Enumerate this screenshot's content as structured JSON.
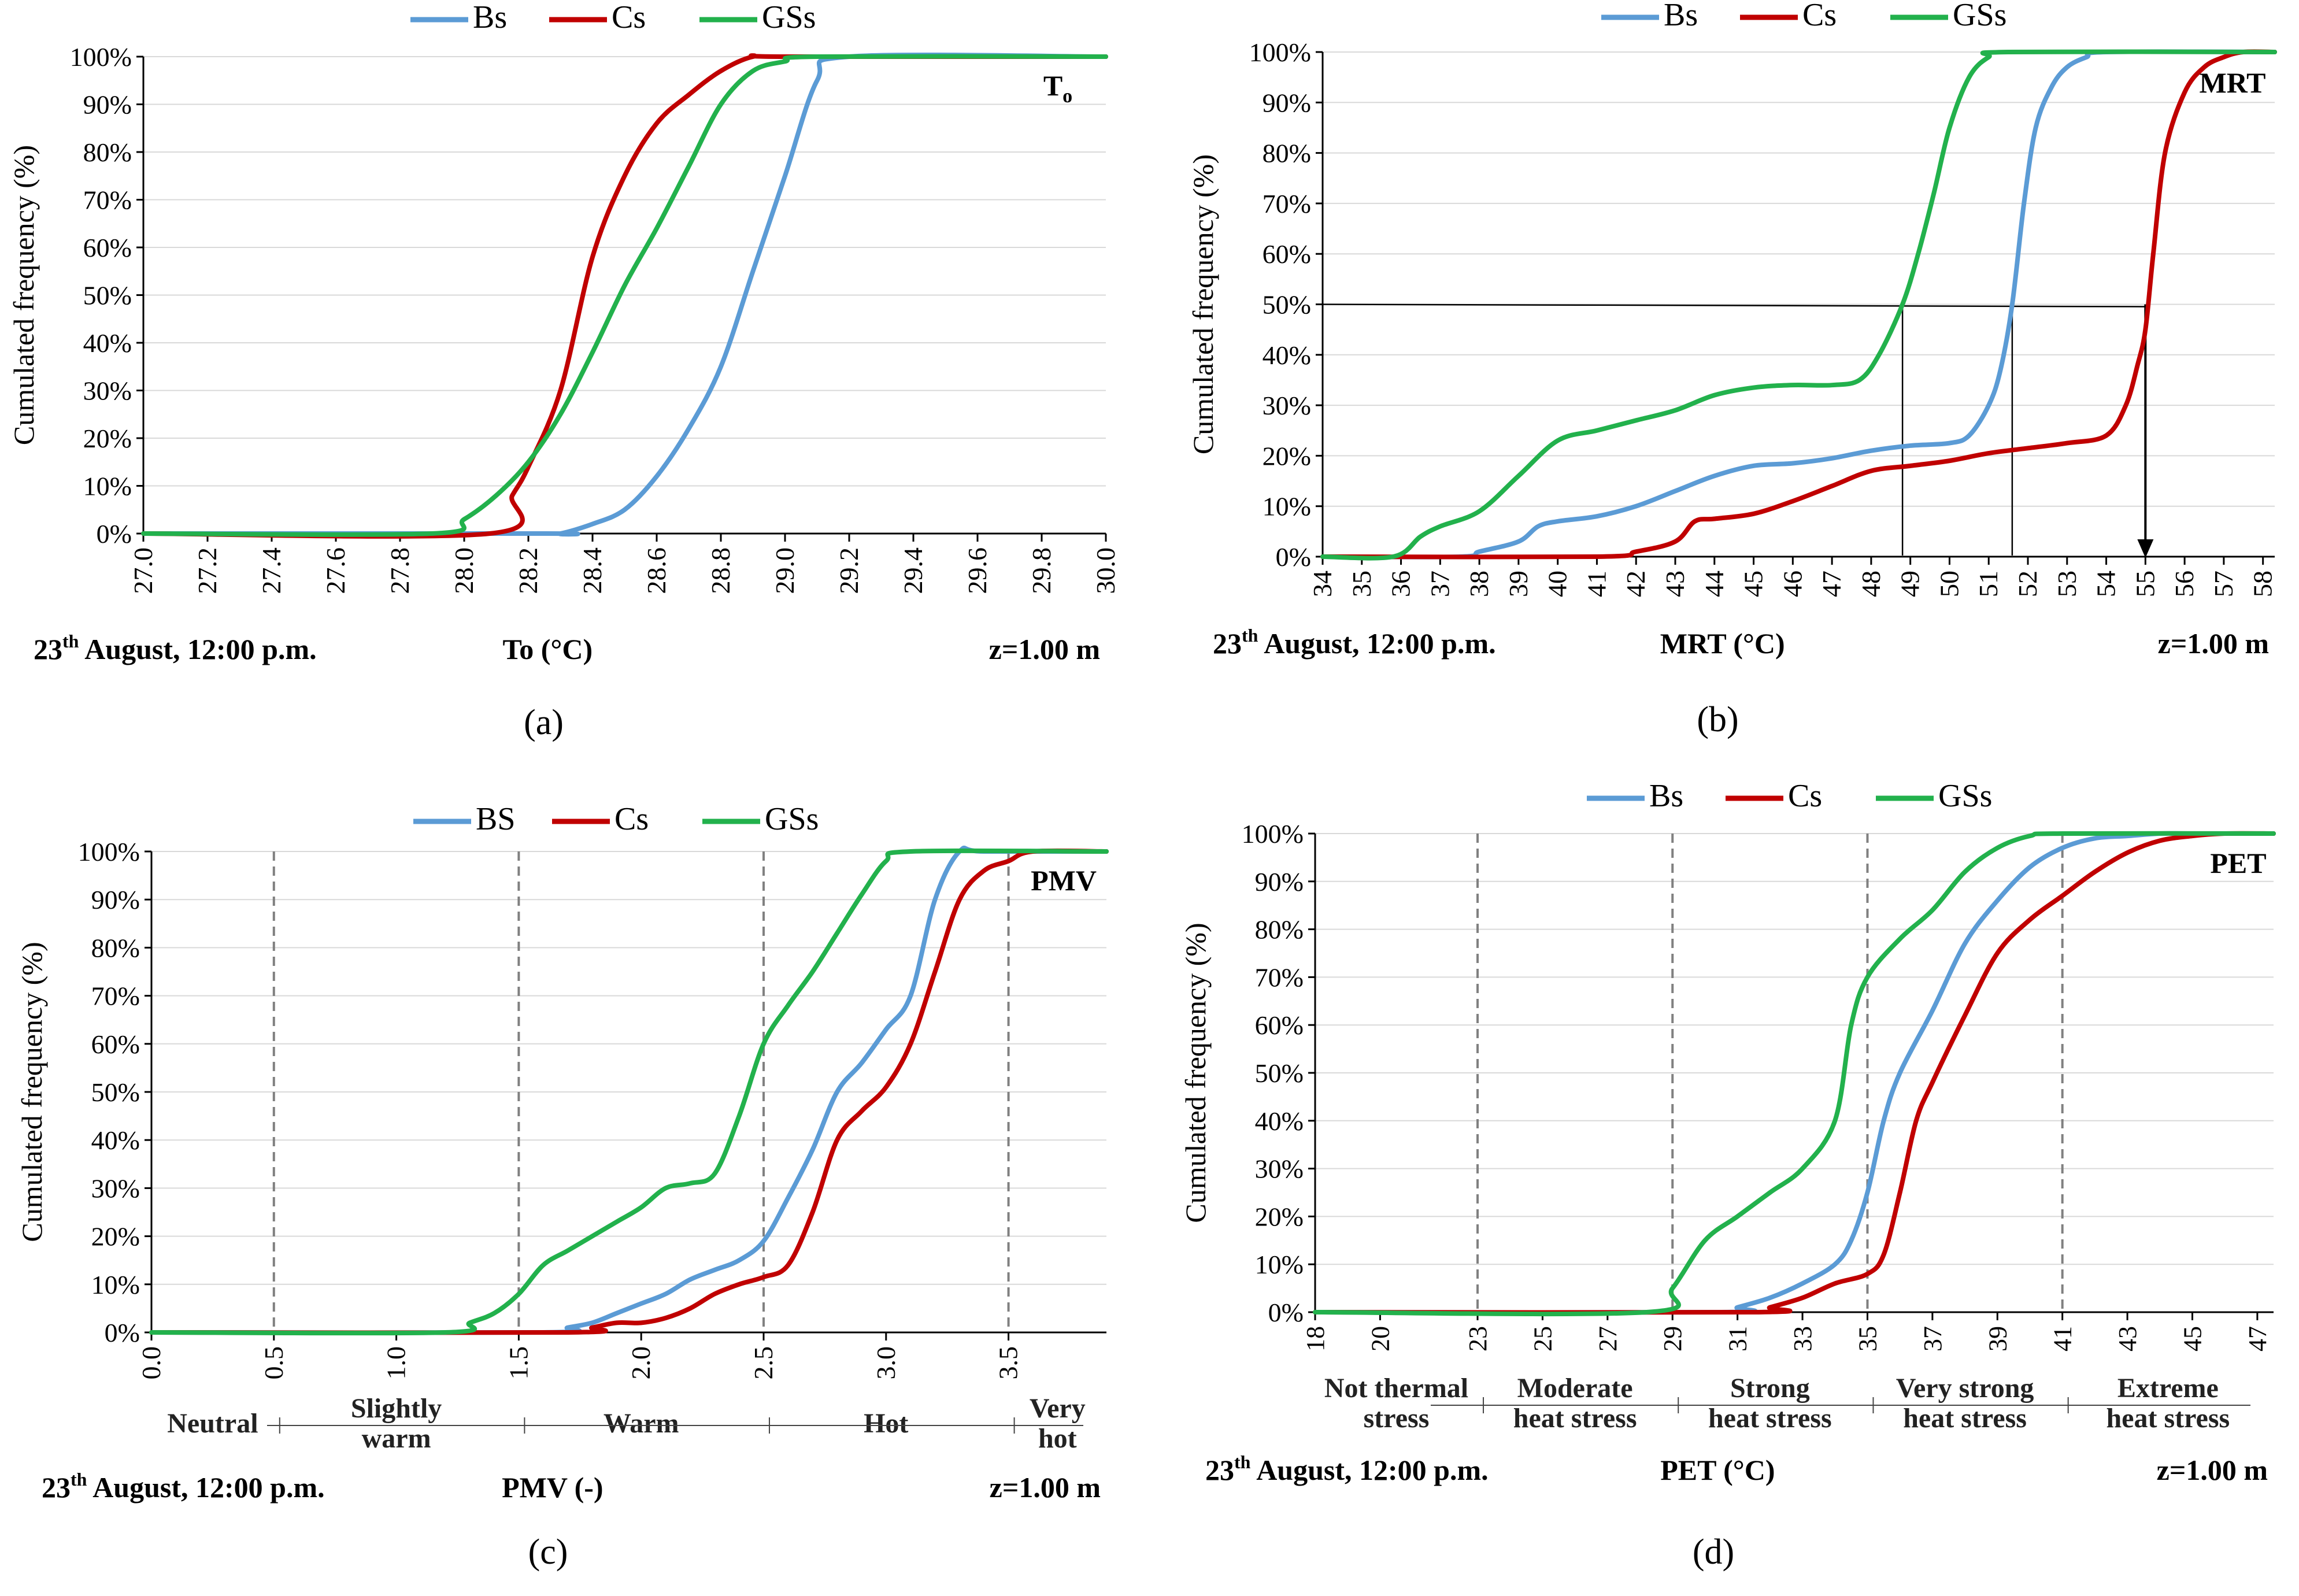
{
  "figure": {
    "colors": {
      "Bs": "#5b9bd5",
      "Cs": "#c00000",
      "GSs": "#22b14c",
      "axis": "#000000",
      "grid": "#d9d9d9",
      "ref": "#808080"
    }
  },
  "chart_data": [
    {
      "type": "line",
      "panel_label": "(a)",
      "title": "To",
      "title_sub": "o",
      "xlabel": "To (°C)",
      "ylabel": "Cumulated frequency (%)",
      "date_label": "23",
      "date_sup": "th",
      "date_rest": " August, 12:00 p.m.",
      "height_label": "z=1.00 m",
      "xlim": [
        27.0,
        30.0
      ],
      "ylim": [
        0,
        100
      ],
      "x_ticks": [
        27.0,
        27.2,
        27.4,
        27.6,
        27.8,
        28.0,
        28.2,
        28.4,
        28.6,
        28.8,
        29.0,
        29.2,
        29.4,
        29.6,
        29.8,
        30.0
      ],
      "x_tick_labels": [
        "27.0",
        "27.2",
        "27.4",
        "27.6",
        "27.8",
        "28.0",
        "28.2",
        "28.4",
        "28.6",
        "28.8",
        "29.0",
        "29.2",
        "29.4",
        "29.6",
        "29.8",
        "30.0"
      ],
      "y_tick_labels": [
        "0%",
        "10%",
        "20%",
        "30%",
        "40%",
        "50%",
        "60%",
        "70%",
        "80%",
        "90%",
        "100%"
      ],
      "legend": [
        "Bs",
        "Cs",
        "GSs"
      ],
      "series": [
        {
          "name": "Bs",
          "x": [
            27.0,
            28.25,
            28.3,
            28.4,
            28.5,
            28.6,
            28.7,
            28.8,
            28.9,
            29.0,
            29.1,
            29.2,
            30.0
          ],
          "y": [
            0,
            0,
            0,
            2,
            5,
            12,
            22,
            35,
            55,
            75,
            95,
            100,
            100
          ]
        },
        {
          "name": "Cs",
          "x": [
            27.0,
            28.08,
            28.15,
            28.2,
            28.3,
            28.4,
            28.5,
            28.6,
            28.7,
            28.8,
            28.9,
            29.0,
            30.0
          ],
          "y": [
            0,
            0,
            8,
            14,
            30,
            58,
            75,
            86,
            92,
            97,
            100,
            100,
            100
          ]
        },
        {
          "name": "GSs",
          "x": [
            27.0,
            27.9,
            28.0,
            28.1,
            28.2,
            28.3,
            28.4,
            28.5,
            28.6,
            28.7,
            28.8,
            28.9,
            29.0,
            29.1,
            30.0
          ],
          "y": [
            0,
            0,
            3,
            8,
            15,
            25,
            38,
            52,
            64,
            77,
            90,
            97,
            99,
            100,
            100
          ]
        }
      ]
    },
    {
      "type": "line",
      "panel_label": "(b)",
      "title": "MRT",
      "xlabel": "MRT (°C)",
      "ylabel": "Cumulated frequency (%)",
      "date_label": "23",
      "date_sup": "th",
      "date_rest": " August, 12:00 p.m.",
      "height_label": "z=1.00 m",
      "xlim": [
        34,
        58.3
      ],
      "ylim": [
        0,
        100
      ],
      "x_ticks": [
        34,
        35,
        36,
        37,
        38,
        39,
        40,
        41,
        42,
        43,
        44,
        45,
        46,
        47,
        48,
        49,
        50,
        51,
        52,
        53,
        54,
        55,
        56,
        57,
        58
      ],
      "x_tick_labels": [
        "34",
        "35",
        "36",
        "37",
        "38",
        "39",
        "40",
        "41",
        "42",
        "43",
        "44",
        "45",
        "46",
        "47",
        "48",
        "49",
        "50",
        "51",
        "52",
        "53",
        "54",
        "55",
        "56",
        "57",
        "58"
      ],
      "y_tick_labels": [
        "0%",
        "10%",
        "20%",
        "30%",
        "40%",
        "50%",
        "60%",
        "70%",
        "80%",
        "90%",
        "100%"
      ],
      "legend": [
        "Bs",
        "Cs",
        "GSs"
      ],
      "median_lines": [
        48.8,
        51.6,
        55.0
      ],
      "series": [
        {
          "name": "Bs",
          "x": [
            34,
            37.5,
            38,
            39,
            39.5,
            40,
            41,
            42,
            43,
            44,
            45,
            46,
            47,
            48,
            49,
            50,
            50.5,
            51,
            51.3,
            51.6,
            51.9,
            52.2,
            52.6,
            53,
            53.5,
            54,
            58.3
          ],
          "y": [
            0,
            0,
            1,
            3,
            6,
            7,
            8,
            10,
            13,
            16,
            18,
            18.5,
            19.5,
            21,
            22,
            22.5,
            24,
            30,
            37,
            50,
            70,
            85,
            93,
            97,
            99,
            100,
            100
          ]
        },
        {
          "name": "Cs",
          "x": [
            34,
            41,
            42,
            43,
            43.5,
            44,
            45,
            46,
            47,
            48,
            49,
            50,
            51,
            52,
            53,
            54,
            54.5,
            54.8,
            55,
            55.2,
            55.5,
            56,
            56.5,
            57,
            57.5,
            58.3
          ],
          "y": [
            0,
            0,
            1,
            3,
            7,
            7.5,
            8.5,
            11,
            14,
            17,
            18,
            19,
            20.5,
            21.5,
            22.5,
            24,
            30,
            38,
            45,
            60,
            80,
            92,
            97,
            99,
            100,
            100
          ]
        },
        {
          "name": "GSs",
          "x": [
            34,
            35.8,
            36.5,
            37,
            38,
            39,
            40,
            41,
            42,
            43,
            44,
            45,
            46,
            47,
            47.7,
            48.2,
            48.8,
            49.2,
            49.6,
            50,
            50.5,
            51,
            51.5,
            58.3
          ],
          "y": [
            0,
            0,
            4,
            6,
            9,
            16,
            23,
            25,
            27,
            29,
            32,
            33.5,
            34,
            34,
            35,
            40,
            50,
            60,
            72,
            85,
            95,
            99,
            100,
            100
          ]
        }
      ]
    },
    {
      "type": "line",
      "panel_label": "(c)",
      "title": "PMV",
      "xlabel": "PMV (-)",
      "ylabel": "Cumulated frequency (%)",
      "date_label": "23",
      "date_sup": "th",
      "date_rest": " August, 12:00 p.m.",
      "height_label": "z=1.00 m",
      "xlim": [
        0.0,
        3.9
      ],
      "ylim": [
        0,
        100
      ],
      "x_ticks": [
        0.0,
        0.5,
        1.0,
        1.5,
        2.0,
        2.5,
        3.0,
        3.5
      ],
      "x_tick_labels": [
        "0.0",
        "0.5",
        "1.0",
        "1.5",
        "2.0",
        "2.5",
        "3.0",
        "3.5"
      ],
      "y_tick_labels": [
        "0%",
        "10%",
        "20%",
        "30%",
        "40%",
        "50%",
        "60%",
        "70%",
        "80%",
        "90%",
        "100%"
      ],
      "legend": [
        "BS",
        "Cs",
        "GSs"
      ],
      "ref_lines": [
        0.5,
        1.5,
        2.5,
        3.5
      ],
      "zones": [
        {
          "lines": [
            "Neutral"
          ],
          "from": 0.0,
          "to": 0.5
        },
        {
          "lines": [
            "Slightly",
            "warm"
          ],
          "from": 0.5,
          "to": 1.5
        },
        {
          "lines": [
            "Warm"
          ],
          "from": 1.5,
          "to": 2.5
        },
        {
          "lines": [
            "Hot"
          ],
          "from": 2.5,
          "to": 3.5
        },
        {
          "lines": [
            "Very",
            "hot"
          ],
          "from": 3.5,
          "to": 3.9
        }
      ],
      "series": [
        {
          "name": "BS",
          "x": [
            0.0,
            1.6,
            1.7,
            1.8,
            1.9,
            2.0,
            2.1,
            2.2,
            2.3,
            2.4,
            2.5,
            2.6,
            2.7,
            2.8,
            2.9,
            3.0,
            3.1,
            3.2,
            3.3,
            3.4,
            3.9
          ],
          "y": [
            0,
            0,
            1,
            2,
            4,
            6,
            8,
            11,
            13,
            15,
            19,
            28,
            38,
            50,
            56,
            63,
            70,
            90,
            100,
            100,
            100
          ]
        },
        {
          "name": "Cs",
          "x": [
            0.0,
            1.7,
            1.8,
            1.9,
            2.0,
            2.1,
            2.2,
            2.3,
            2.4,
            2.5,
            2.6,
            2.7,
            2.8,
            2.9,
            3.0,
            3.1,
            3.2,
            3.3,
            3.4,
            3.5,
            3.6,
            3.9
          ],
          "y": [
            0,
            0,
            1,
            2,
            2,
            3,
            5,
            8,
            10,
            11.5,
            14,
            25,
            40,
            46,
            51,
            60,
            75,
            90,
            96,
            98,
            100,
            100
          ]
        },
        {
          "name": "GSs",
          "x": [
            0.0,
            1.2,
            1.3,
            1.4,
            1.5,
            1.6,
            1.7,
            1.8,
            1.9,
            2.0,
            2.1,
            2.2,
            2.3,
            2.4,
            2.5,
            2.6,
            2.7,
            2.8,
            2.9,
            3.0,
            3.1,
            3.9
          ],
          "y": [
            0,
            0,
            2,
            4,
            8,
            14,
            17,
            20,
            23,
            26,
            30,
            31,
            33,
            45,
            60,
            68,
            75,
            83,
            91,
            98,
            100,
            100
          ]
        }
      ]
    },
    {
      "type": "line",
      "panel_label": "(d)",
      "title": "PET",
      "xlabel": "PET (°C)",
      "ylabel": "Cumulated frequency (%)",
      "date_label": "23",
      "date_sup": "th",
      "date_rest": " August, 12:00 p.m.",
      "height_label": "z=1.00 m",
      "xlim": [
        18,
        47.5
      ],
      "ylim": [
        0,
        100
      ],
      "x_ticks": [
        18,
        20,
        23,
        25,
        27,
        29,
        31,
        33,
        35,
        37,
        39,
        41,
        43,
        45,
        47
      ],
      "x_tick_labels": [
        "18",
        "20",
        "23",
        "25",
        "27",
        "29",
        "31",
        "33",
        "35",
        "37",
        "39",
        "41",
        "43",
        "45",
        "47"
      ],
      "y_tick_labels": [
        "0%",
        "10%",
        "20%",
        "30%",
        "40%",
        "50%",
        "60%",
        "70%",
        "80%",
        "90%",
        "100%"
      ],
      "legend": [
        "Bs",
        "Cs",
        "GSs"
      ],
      "ref_lines": [
        23,
        29,
        35,
        41
      ],
      "zones": [
        {
          "lines": [
            "Not thermal",
            "stress"
          ],
          "from": 18,
          "to": 23
        },
        {
          "lines": [
            "Moderate",
            "heat stress"
          ],
          "from": 23,
          "to": 29
        },
        {
          "lines": [
            "Strong",
            "heat stress"
          ],
          "from": 29,
          "to": 35
        },
        {
          "lines": [
            "Very strong",
            "heat stress"
          ],
          "from": 35,
          "to": 41
        },
        {
          "lines": [
            "Extreme",
            "heat stress"
          ],
          "from": 41,
          "to": 47.5
        }
      ],
      "series": [
        {
          "name": "Bs",
          "x": [
            18,
            30.5,
            31,
            32,
            33,
            34,
            34.5,
            35,
            35.5,
            36,
            37,
            38,
            39,
            40,
            41,
            42,
            43,
            44,
            45,
            47.5
          ],
          "y": [
            0,
            0,
            1,
            3,
            6,
            10,
            15,
            25,
            40,
            50,
            63,
            77,
            86,
            93,
            97,
            99,
            99.5,
            100,
            100,
            100
          ]
        },
        {
          "name": "Cs",
          "x": [
            18,
            31.5,
            32,
            33,
            34,
            35,
            35.5,
            36,
            36.5,
            37,
            38,
            39,
            40,
            41,
            42,
            43,
            44,
            45,
            46,
            47.5
          ],
          "y": [
            0,
            0,
            1,
            3,
            6,
            8,
            12,
            25,
            40,
            48,
            62,
            75,
            82,
            87,
            92,
            96,
            98.5,
            99.5,
            100,
            100
          ]
        },
        {
          "name": "GSs",
          "x": [
            18,
            28.2,
            29,
            30,
            31,
            32,
            33,
            34,
            34.5,
            35,
            36,
            37,
            38,
            39,
            40,
            41,
            47.5
          ],
          "y": [
            0,
            0,
            5,
            15,
            20,
            25,
            30,
            40,
            60,
            70,
            78,
            84,
            92,
            97,
            99.5,
            100,
            100
          ]
        }
      ]
    }
  ]
}
